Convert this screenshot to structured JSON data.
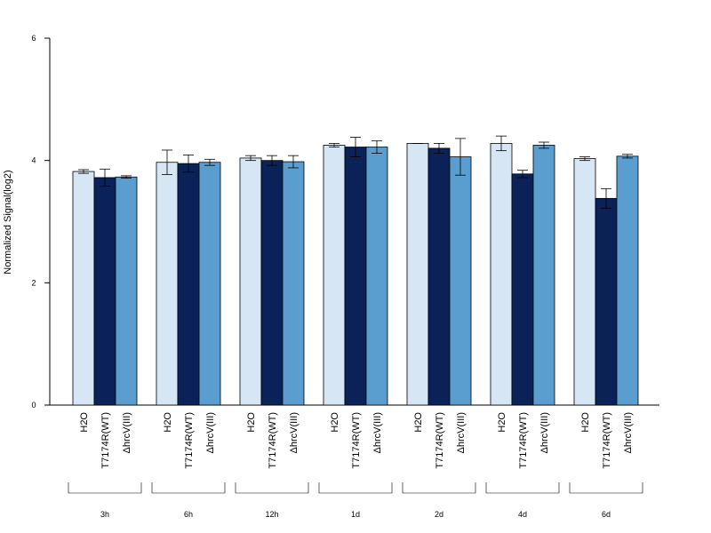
{
  "chart_data": {
    "type": "bar",
    "title": "",
    "xlabel": "",
    "ylabel": "Normalized Signal(log2)",
    "ylim": [
      0,
      6
    ],
    "yticks": [
      "0",
      "2",
      "4",
      "6"
    ],
    "bar_labels": [
      "H2O",
      "T7174R(WT)",
      "ΔhrcV(III)"
    ],
    "categories": [
      "3h",
      "6h",
      "12h",
      "1d",
      "2d",
      "4d",
      "6d"
    ],
    "colors": [
      "#d6e6f5",
      "#0b2259",
      "#5a9ecf"
    ],
    "grid": false,
    "legend": "none",
    "series": [
      {
        "values": [
          3.82,
          3.97,
          4.04,
          4.25,
          4.28,
          4.28,
          4.03
        ],
        "errors": [
          0.03,
          0.2,
          0.04,
          0.03,
          0.0,
          0.12,
          0.03
        ]
      },
      {
        "values": [
          3.72,
          3.95,
          4.0,
          4.22,
          4.2,
          3.78,
          3.38
        ],
        "errors": [
          0.14,
          0.14,
          0.08,
          0.16,
          0.08,
          0.06,
          0.16
        ]
      },
      {
        "values": [
          3.73,
          3.97,
          3.98,
          4.22,
          4.06,
          4.25,
          4.07
        ],
        "errors": [
          0.02,
          0.05,
          0.1,
          0.1,
          0.3,
          0.05,
          0.03
        ]
      }
    ]
  }
}
